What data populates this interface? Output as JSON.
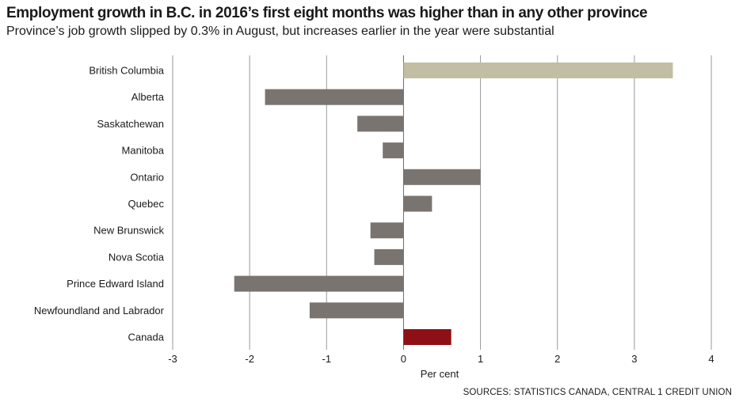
{
  "header": {
    "title": "Employment growth in B.C. in 2016’s first eight months was higher than in any other province",
    "subtitle": "Province’s job growth slipped by 0.3% in August, but increases earlier in the year were substantial"
  },
  "footer": {
    "source": "SOURCES: STATISTICS CANADA, CENTRAL 1 CREDIT UNION"
  },
  "colors": {
    "highlight_bc": "#c2bea3",
    "default_bar": "#7a7470",
    "canada_bar": "#8e1016",
    "gridline": "#9a9a9a"
  },
  "chart_data": {
    "type": "bar",
    "orientation": "horizontal",
    "categories": [
      "British Columbia",
      "Alberta",
      "Saskatchewan",
      "Manitoba",
      "Ontario",
      "Quebec",
      "New Brunswick",
      "Nova Scotia",
      "Prince Edward Island",
      "Newfoundland and Labrador",
      "Canada"
    ],
    "values": [
      3.5,
      -1.8,
      -0.6,
      -0.27,
      1.0,
      0.37,
      -0.43,
      -0.38,
      -2.2,
      -1.22,
      0.62
    ],
    "bar_colors": [
      "#c2bea3",
      "#7a7470",
      "#7a7470",
      "#7a7470",
      "#7a7470",
      "#7a7470",
      "#7a7470",
      "#7a7470",
      "#7a7470",
      "#7a7470",
      "#8e1016"
    ],
    "xlim": [
      -3,
      4
    ],
    "xticks": [
      "-3",
      "-2",
      "-1",
      "0",
      "1",
      "2",
      "3",
      "4"
    ],
    "xlabel": "Per cent",
    "ylabel": "",
    "grid": "vertical"
  }
}
